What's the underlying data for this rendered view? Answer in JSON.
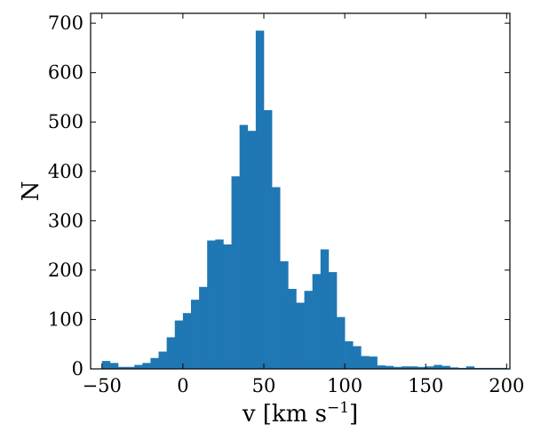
{
  "chart_data": {
    "type": "bar",
    "subtype": "histogram",
    "bar_color": "#1f77b4",
    "xlabel": "v [km s",
    "xlabel_superscript": "−1",
    "xlabel_suffix": "]",
    "ylabel": "N",
    "xlim": [
      -57,
      202
    ],
    "ylim": [
      0,
      720
    ],
    "xticks": [
      -50,
      0,
      50,
      100,
      150,
      200
    ],
    "xtick_labels": [
      "−50",
      "0",
      "50",
      "100",
      "150",
      "200"
    ],
    "yticks": [
      0,
      100,
      200,
      300,
      400,
      500,
      600,
      700
    ],
    "ytick_labels": [
      "0",
      "100",
      "200",
      "300",
      "400",
      "500",
      "600",
      "700"
    ],
    "bin_width": 5,
    "bin_starts": [
      -50,
      -45,
      -40,
      -35,
      -30,
      -25,
      -20,
      -15,
      -10,
      -5,
      0,
      5,
      10,
      15,
      20,
      25,
      30,
      35,
      40,
      45,
      50,
      55,
      60,
      65,
      70,
      75,
      80,
      85,
      90,
      95,
      100,
      105,
      110,
      115,
      120,
      125,
      130,
      135,
      140,
      145,
      150,
      155,
      160,
      165,
      170,
      175,
      180,
      185,
      190,
      195
    ],
    "values": [
      16,
      12,
      4,
      4,
      8,
      12,
      22,
      35,
      64,
      98,
      113,
      140,
      166,
      260,
      262,
      252,
      390,
      494,
      482,
      685,
      524,
      368,
      218,
      162,
      134,
      158,
      192,
      242,
      196,
      105,
      56,
      46,
      26,
      25,
      7,
      6,
      4,
      5,
      5,
      4,
      5,
      8,
      6,
      3,
      2,
      5,
      2,
      2,
      2,
      2
    ],
    "grid": false,
    "legend": "none"
  }
}
